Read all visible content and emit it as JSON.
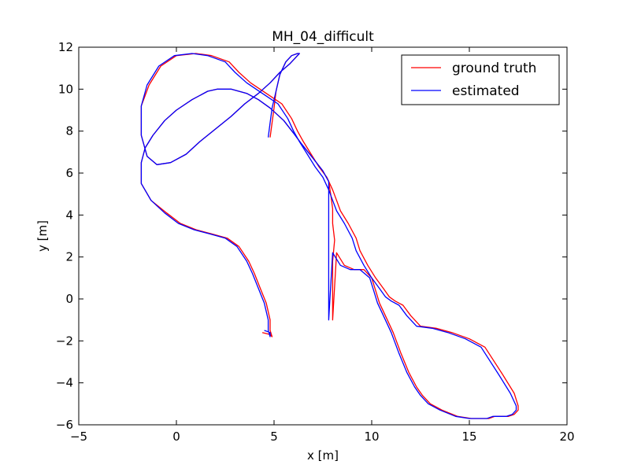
{
  "chart_data": {
    "type": "line",
    "title": "MH_04_difficult",
    "xlabel": "x [m]",
    "ylabel": "y [m]",
    "xlim": [
      -5,
      20
    ],
    "ylim": [
      -6,
      12
    ],
    "xticks": [
      "-5",
      "0",
      "5",
      "10",
      "15",
      "20"
    ],
    "yticks": [
      "-6",
      "-4",
      "-2",
      "0",
      "2",
      "4",
      "6",
      "8",
      "10",
      "12"
    ],
    "grid": false,
    "legend_position": "top-right",
    "series": [
      {
        "name": "ground truth",
        "color": "#ff0000",
        "x": [
          4.4,
          4.8,
          4.9,
          4.8,
          4.8,
          4.6,
          4.3,
          4.0,
          3.7,
          3.2,
          2.6,
          1.8,
          1.0,
          0.2,
          -0.5,
          -1.3,
          -1.8,
          -1.8,
          -1.6,
          -1.2,
          -0.6,
          0.0,
          0.8,
          1.6,
          2.1,
          2.8,
          3.6,
          4.2,
          4.8,
          5.5,
          6.0,
          6.4,
          7.0,
          7.5,
          7.8,
          7.9,
          8.0,
          8.0,
          8.1,
          8.0,
          8.0,
          8.0,
          8.2,
          8.6,
          9.1,
          9.6,
          10.0,
          10.2,
          10.4,
          10.7,
          11.1,
          11.5,
          11.9,
          12.3,
          12.6,
          13.0,
          13.6,
          14.4,
          15.1,
          15.6,
          16.0,
          16.3,
          16.6,
          17.0,
          17.3,
          17.5,
          17.5,
          17.3,
          16.7,
          15.8,
          15.0,
          14.1,
          13.3,
          12.5,
          12.0,
          11.6,
          11.2,
          10.9,
          10.6,
          10.2,
          9.8,
          9.4,
          9.2,
          8.8,
          8.4,
          8.2,
          8.0,
          7.7,
          7.3,
          6.9,
          6.5,
          6.2,
          5.9,
          5.4,
          4.6,
          3.8,
          3.2,
          2.7,
          1.8,
          1.0,
          0.0,
          -0.8,
          -1.4,
          -1.8,
          -1.8,
          -1.5,
          -1.0,
          -0.3,
          0.5,
          1.2,
          2.0,
          2.8,
          3.5,
          4.2,
          4.8,
          5.3,
          5.8,
          6.1,
          6.3,
          6.2,
          5.9,
          5.6,
          5.3,
          5.1,
          5.0,
          4.9,
          4.8
        ],
        "y": [
          -1.6,
          -1.7,
          -1.8,
          -1.5,
          -1.0,
          -0.2,
          0.5,
          1.2,
          1.8,
          2.5,
          2.9,
          3.1,
          3.3,
          3.6,
          4.1,
          4.7,
          5.5,
          6.5,
          7.2,
          7.8,
          8.5,
          9.0,
          9.5,
          9.9,
          10.0,
          10.0,
          9.8,
          9.5,
          9.1,
          8.5,
          7.9,
          7.4,
          6.7,
          6.1,
          5.6,
          5.0,
          4.3,
          3.6,
          2.8,
          1.8,
          0.5,
          -1.0,
          2.2,
          1.6,
          1.4,
          1.4,
          1.0,
          0.4,
          -0.2,
          -0.8,
          -1.6,
          -2.6,
          -3.5,
          -4.2,
          -4.6,
          -5.0,
          -5.3,
          -5.6,
          -5.7,
          -5.7,
          -5.7,
          -5.6,
          -5.6,
          -5.6,
          -5.5,
          -5.3,
          -5.1,
          -4.5,
          -3.6,
          -2.3,
          -1.9,
          -1.6,
          -1.4,
          -1.3,
          -0.8,
          -0.3,
          -0.1,
          0.1,
          0.5,
          1.0,
          1.6,
          2.3,
          2.9,
          3.6,
          4.2,
          4.7,
          5.2,
          5.8,
          6.3,
          6.9,
          7.5,
          8.0,
          8.6,
          9.3,
          9.8,
          10.3,
          10.8,
          11.3,
          11.6,
          11.7,
          11.6,
          11.1,
          10.2,
          9.2,
          7.8,
          6.8,
          6.4,
          6.5,
          6.9,
          7.5,
          8.1,
          8.7,
          9.3,
          9.8,
          10.3,
          10.8,
          11.2,
          11.5,
          11.7,
          11.7,
          11.6,
          11.3,
          10.7,
          9.9,
          9.1,
          8.4,
          7.7
        ]
      },
      {
        "name": "estimated",
        "color": "#0000ff",
        "x": [
          4.5,
          4.8,
          4.8,
          4.7,
          4.7,
          4.5,
          4.2,
          3.9,
          3.6,
          3.1,
          2.5,
          1.7,
          0.9,
          0.1,
          -0.6,
          -1.3,
          -1.8,
          -1.8,
          -1.6,
          -1.2,
          -0.6,
          0.0,
          0.8,
          1.6,
          2.1,
          2.8,
          3.6,
          4.2,
          4.8,
          5.5,
          6.0,
          6.4,
          7.0,
          7.5,
          7.8,
          7.8,
          7.8,
          7.8,
          7.8,
          7.8,
          7.8,
          7.8,
          8.0,
          8.4,
          8.9,
          9.4,
          9.9,
          10.1,
          10.3,
          10.6,
          11.0,
          11.4,
          11.8,
          12.2,
          12.5,
          12.9,
          13.5,
          14.3,
          15.0,
          15.5,
          15.9,
          16.2,
          16.5,
          16.9,
          17.2,
          17.4,
          17.4,
          17.1,
          16.5,
          15.6,
          14.8,
          13.9,
          13.1,
          12.3,
          11.8,
          11.4,
          11.0,
          10.7,
          10.4,
          10.0,
          9.6,
          9.2,
          9.0,
          8.6,
          8.2,
          8.0,
          7.8,
          7.5,
          7.1,
          6.7,
          6.3,
          6.0,
          5.7,
          5.2,
          4.4,
          3.6,
          3.0,
          2.5,
          1.6,
          0.8,
          -0.1,
          -0.9,
          -1.5,
          -1.8,
          -1.8,
          -1.5,
          -1.0,
          -0.3,
          0.5,
          1.2,
          2.0,
          2.8,
          3.5,
          4.2,
          4.8,
          5.3,
          5.8,
          6.1,
          6.3,
          6.2,
          5.9,
          5.6,
          5.3,
          5.1,
          4.9,
          4.8,
          4.7
        ],
        "y": [
          -1.5,
          -1.6,
          -1.8,
          -1.5,
          -1.0,
          -0.2,
          0.5,
          1.2,
          1.8,
          2.5,
          2.9,
          3.1,
          3.3,
          3.6,
          4.1,
          4.7,
          5.5,
          6.5,
          7.2,
          7.8,
          8.5,
          9.0,
          9.5,
          9.9,
          10.0,
          10.0,
          9.8,
          9.5,
          9.1,
          8.5,
          7.9,
          7.4,
          6.7,
          6.1,
          5.6,
          5.0,
          4.3,
          3.6,
          2.8,
          1.8,
          0.5,
          -1.0,
          2.2,
          1.6,
          1.4,
          1.4,
          1.0,
          0.4,
          -0.2,
          -0.8,
          -1.6,
          -2.6,
          -3.5,
          -4.2,
          -4.6,
          -5.0,
          -5.3,
          -5.6,
          -5.7,
          -5.7,
          -5.7,
          -5.6,
          -5.6,
          -5.6,
          -5.5,
          -5.3,
          -5.1,
          -4.5,
          -3.6,
          -2.3,
          -1.9,
          -1.6,
          -1.4,
          -1.3,
          -0.8,
          -0.3,
          -0.1,
          0.1,
          0.5,
          1.0,
          1.6,
          2.3,
          2.9,
          3.6,
          4.2,
          4.7,
          5.2,
          5.8,
          6.3,
          6.9,
          7.5,
          8.0,
          8.6,
          9.3,
          9.8,
          10.3,
          10.8,
          11.3,
          11.6,
          11.7,
          11.6,
          11.1,
          10.2,
          9.2,
          7.8,
          6.8,
          6.4,
          6.5,
          6.9,
          7.5,
          8.1,
          8.7,
          9.3,
          9.8,
          10.3,
          10.8,
          11.2,
          11.5,
          11.7,
          11.7,
          11.6,
          11.3,
          10.7,
          9.9,
          9.1,
          8.4,
          7.7
        ]
      }
    ]
  }
}
